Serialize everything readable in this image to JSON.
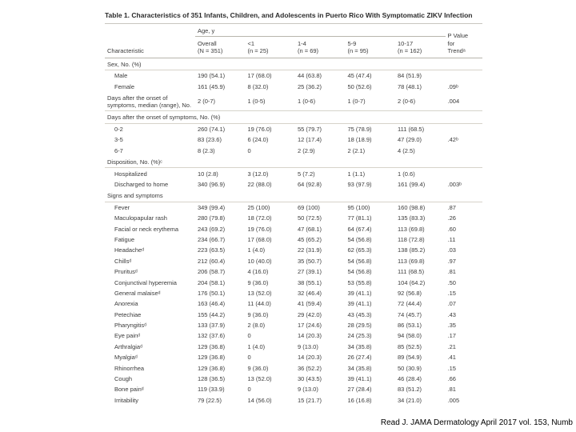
{
  "colors": {
    "bg": "#ffffff",
    "text": "#3a3a3a",
    "rule": "#b8b5ad",
    "rule_light": "#d6d3ca"
  },
  "font": {
    "family": "Arial, Helvetica, sans-serif",
    "title_size_pt": 8.5,
    "body_size_pt": 7.5
  },
  "title": "Table 1. Characteristics of 351 Infants, Children, and Adolescents in Puerto Rico With Symptomatic ZIKV Infection",
  "age_header": "Age, y",
  "columns": {
    "characteristic": "Characteristic",
    "overall": "Overall\n(N = 351)",
    "lt1": "<1\n(n = 25)",
    "c1_4": "1-4\n(n = 69)",
    "c5_9": "5-9\n(n = 95)",
    "c10_17": "10-17\n(n = 162)",
    "pvalue": "P Value\nfor\nTrendᵃ"
  },
  "sections": [
    {
      "label": "Sex, No. (%)",
      "rows": [
        {
          "label": "Male",
          "v": [
            "190 (54.1)",
            "17 (68.0)",
            "44 (63.8)",
            "45 (47.4)",
            "84 (51.9)"
          ],
          "p": ""
        },
        {
          "label": "Female",
          "v": [
            "161 (45.9)",
            "8 (32.0)",
            "25 (36.2)",
            "50 (52.6)",
            "78 (48.1)"
          ],
          "p": ".09ᵇ"
        }
      ]
    },
    {
      "label": "Days after the onset of symptoms, median (range), No.",
      "flat": true,
      "rows": [
        {
          "label": "",
          "v": [
            "2 (0-7)",
            "1 (0-5)",
            "1 (0-6)",
            "1 (0-7)",
            "2 (0-6)"
          ],
          "p": ".004"
        }
      ]
    },
    {
      "label": "Days after the onset of symptoms, No. (%)",
      "rows": [
        {
          "label": "0-2",
          "v": [
            "260 (74.1)",
            "19 (76.0)",
            "55 (79.7)",
            "75 (78.9)",
            "111 (68.5)"
          ],
          "p": ""
        },
        {
          "label": "3-5",
          "v": [
            "83 (23.6)",
            "6 (24.0)",
            "12 (17.4)",
            "18 (18.9)",
            "47 (29.0)"
          ],
          "p": ".42ᵇ"
        },
        {
          "label": "6-7",
          "v": [
            "8 (2.3)",
            "0",
            "2 (2.9)",
            "2 (2.1)",
            "4 (2.5)"
          ],
          "p": ""
        }
      ]
    },
    {
      "label": "Disposition, No. (%)ᶜ",
      "rows": [
        {
          "label": "Hospitalized",
          "v": [
            "10 (2.8)",
            "3 (12.0)",
            "5 (7.2)",
            "1 (1.1)",
            "1 (0.6)"
          ],
          "p": ""
        },
        {
          "label": "Discharged to home",
          "v": [
            "340 (96.9)",
            "22 (88.0)",
            "64 (92.8)",
            "93 (97.9)",
            "161 (99.4)"
          ],
          "p": ".003ᵇ"
        }
      ]
    },
    {
      "label": "Signs and symptoms",
      "rows": [
        {
          "label": "Fever",
          "v": [
            "349 (99.4)",
            "25 (100)",
            "69 (100)",
            "95 (100)",
            "160 (98.8)"
          ],
          "p": ".87"
        },
        {
          "label": "Maculopapular rash",
          "v": [
            "280 (79.8)",
            "18 (72.0)",
            "50 (72.5)",
            "77 (81.1)",
            "135 (83.3)"
          ],
          "p": ".26"
        },
        {
          "label": "Facial or neck erythema",
          "v": [
            "243 (69.2)",
            "19 (76.0)",
            "47 (68.1)",
            "64 (67.4)",
            "113 (69.8)"
          ],
          "p": ".60"
        },
        {
          "label": "Fatigue",
          "v": [
            "234 (66.7)",
            "17 (68.0)",
            "45 (65.2)",
            "54 (56.8)",
            "118 (72.8)"
          ],
          "p": ".11"
        },
        {
          "label": "Headacheᵈ",
          "v": [
            "223 (63.5)",
            "1 (4.0)",
            "22 (31.9)",
            "62 (65.3)",
            "138 (85.2)"
          ],
          "p": ".03"
        },
        {
          "label": "Chillsᵈ",
          "v": [
            "212 (60.4)",
            "10 (40.0)",
            "35 (50.7)",
            "54 (56.8)",
            "113 (69.8)"
          ],
          "p": ".97"
        },
        {
          "label": "Pruritusᵈ",
          "v": [
            "206 (58.7)",
            "4 (16.0)",
            "27 (39.1)",
            "54 (56.8)",
            "111 (68.5)"
          ],
          "p": ".81"
        },
        {
          "label": "Conjunctival hyperemia",
          "v": [
            "204 (58.1)",
            "9 (36.0)",
            "38 (55.1)",
            "53 (55.8)",
            "104 (64.2)"
          ],
          "p": ".50"
        },
        {
          "label": "General malaiseᵈ",
          "v": [
            "176 (50.1)",
            "13 (52.0)",
            "32 (46.4)",
            "39 (41.1)",
            "92 (56.8)"
          ],
          "p": ".15"
        },
        {
          "label": "Anorexia",
          "v": [
            "163 (46.4)",
            "11 (44.0)",
            "41 (59.4)",
            "39 (41.1)",
            "72 (44.4)"
          ],
          "p": ".07"
        },
        {
          "label": "Petechiae",
          "v": [
            "155 (44.2)",
            "9 (36.0)",
            "29 (42.0)",
            "43 (45.3)",
            "74 (45.7)"
          ],
          "p": ".43"
        },
        {
          "label": "Pharyngitisᵈ",
          "v": [
            "133 (37.9)",
            "2 (8.0)",
            "17 (24.6)",
            "28 (29.5)",
            "86 (53.1)"
          ],
          "p": ".35"
        },
        {
          "label": "Eye painᵈ",
          "v": [
            "132 (37.6)",
            "0",
            "14 (20.3)",
            "24 (25.3)",
            "94 (58.0)"
          ],
          "p": ".17"
        },
        {
          "label": "Arthralgiaᵈ",
          "v": [
            "129 (36.8)",
            "1 (4.0)",
            "9 (13.0)",
            "34 (35.8)",
            "85 (52.5)"
          ],
          "p": ".21"
        },
        {
          "label": "Myalgiaᵈ",
          "v": [
            "129 (36.8)",
            "0",
            "14 (20.3)",
            "26 (27.4)",
            "89 (54.9)"
          ],
          "p": ".41"
        },
        {
          "label": "Rhinorrhea",
          "v": [
            "129 (36.8)",
            "9 (36.0)",
            "36 (52.2)",
            "34 (35.8)",
            "50 (30.9)"
          ],
          "p": ".15"
        },
        {
          "label": "Cough",
          "v": [
            "128 (36.5)",
            "13 (52.0)",
            "30 (43.5)",
            "39 (41.1)",
            "46 (28.4)"
          ],
          "p": ".66"
        },
        {
          "label": "Bone painᵈ",
          "v": [
            "119 (33.9)",
            "0",
            "9 (13.0)",
            "27 (28.4)",
            "83 (51.2)"
          ],
          "p": ".81"
        },
        {
          "label": "Irritability",
          "v": [
            "79 (22.5)",
            "14 (56.0)",
            "15 (21.7)",
            "16 (16.8)",
            "34 (21.0)"
          ],
          "p": ".005"
        }
      ]
    }
  ],
  "citation": "Read J. JAMA Dermatology April 2017 vol. 153, Numb"
}
